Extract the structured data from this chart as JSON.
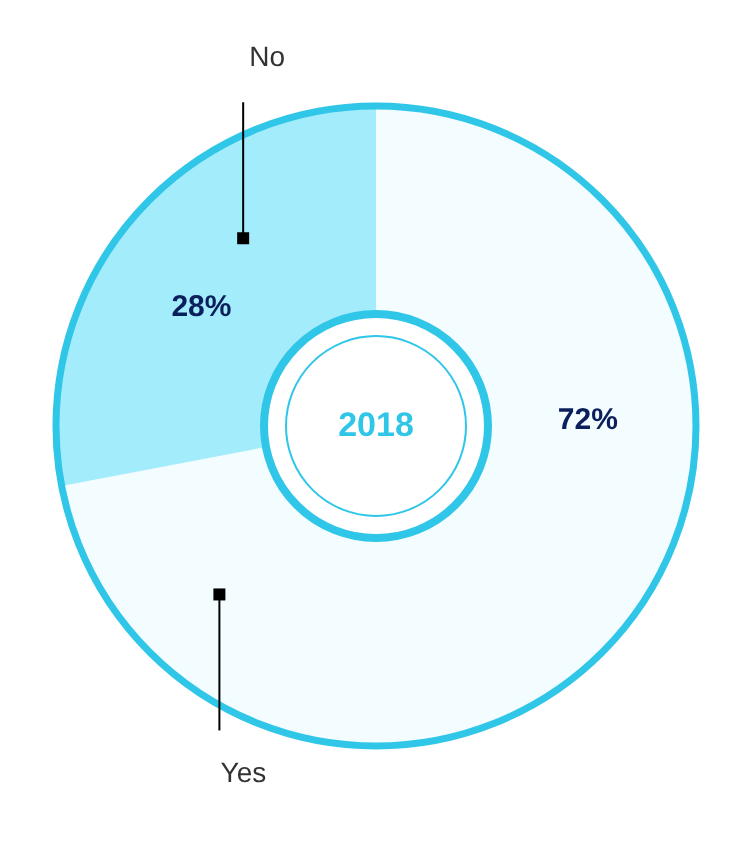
{
  "chart_data": {
    "type": "donut",
    "title": "2018",
    "categories": [
      "Yes",
      "No"
    ],
    "values": [
      72,
      28
    ],
    "colors": [
      "#f3fcfe",
      "#a3ecfc"
    ],
    "value_labels": [
      "72%",
      "28%"
    ]
  }
}
